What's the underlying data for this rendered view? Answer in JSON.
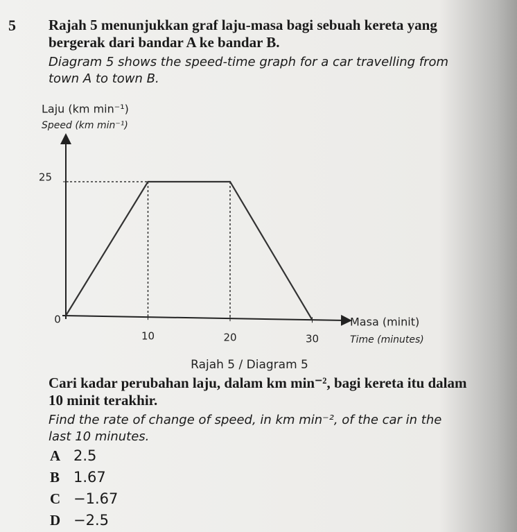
{
  "question": {
    "number": "5",
    "stem_ms": "Rajah 5 menunjukkan graf laju-masa bagi sebuah kereta yang bergerak dari bandar A ke bandar B.",
    "stem_en": "Diagram 5 shows the speed-time graph for a car travelling from town A to town B.",
    "ask_ms": "Cari kadar perubahan laju, dalam km min⁻², bagi kereta itu dalam 10 minit terakhir.",
    "ask_en": "Find the rate of change of speed, in km min⁻², of the car in the last 10 minutes.",
    "options": [
      {
        "letter": "A",
        "text": "2.5"
      },
      {
        "letter": "B",
        "text": "1.67"
      },
      {
        "letter": "C",
        "text": "−1.67"
      },
      {
        "letter": "D",
        "text": "−2.5"
      }
    ]
  },
  "chart_data": {
    "type": "line",
    "y_label_ms": "Laju (km min⁻¹)",
    "y_label_en": "Speed (km min⁻¹)",
    "x_label_ms": "Masa (minit)",
    "x_label_en": "Time (minutes)",
    "caption": "Rajah 5 / Diagram 5",
    "x": [
      0,
      10,
      20,
      30
    ],
    "values": [
      0,
      25,
      25,
      0
    ],
    "color": "#333333",
    "xlim": [
      0,
      35
    ],
    "ylim": [
      0,
      33
    ],
    "xticks": [
      0,
      10,
      20,
      30
    ],
    "yticks": [
      25
    ]
  }
}
